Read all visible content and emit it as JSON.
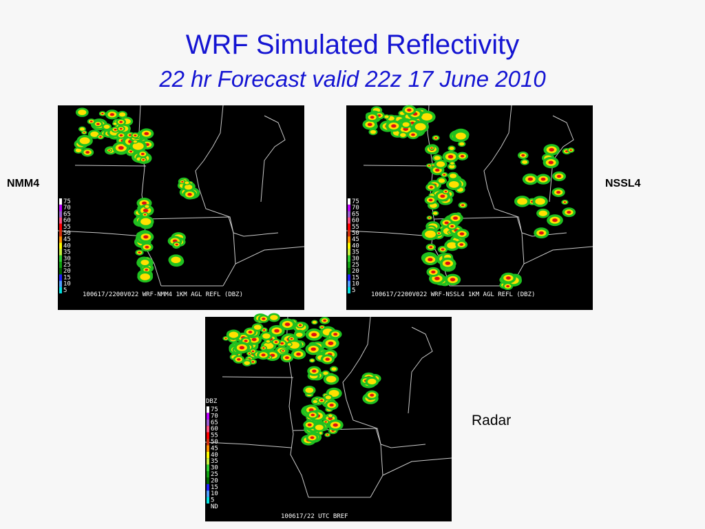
{
  "header": {
    "title": "WRF Simulated Reflectivity",
    "subtitle": "22 hr Forecast valid 22z 17 June 2010"
  },
  "panels": [
    {
      "label": "NMM4",
      "caption": "100617/2200V022 WRF-NMM4 1KM AGL REFL (DBZ)",
      "legend": [
        75,
        70,
        65,
        60,
        55,
        50,
        45,
        40,
        35,
        30,
        25,
        20,
        15,
        10,
        5
      ]
    },
    {
      "label": "NSSL4",
      "caption": "100617/2200V022 WRF-NSSL4 1KM AGL REFL (DBZ)",
      "legend": [
        75,
        70,
        65,
        60,
        55,
        50,
        45,
        40,
        35,
        30,
        25,
        20,
        15,
        10,
        5
      ]
    },
    {
      "label": "Radar",
      "caption": "100617/22 UTC BREF",
      "legend_title": "DBZ",
      "legend": [
        75,
        70,
        65,
        60,
        55,
        50,
        45,
        40,
        35,
        30,
        25,
        20,
        15,
        10,
        5
      ],
      "no_data_label": "ND"
    }
  ]
}
